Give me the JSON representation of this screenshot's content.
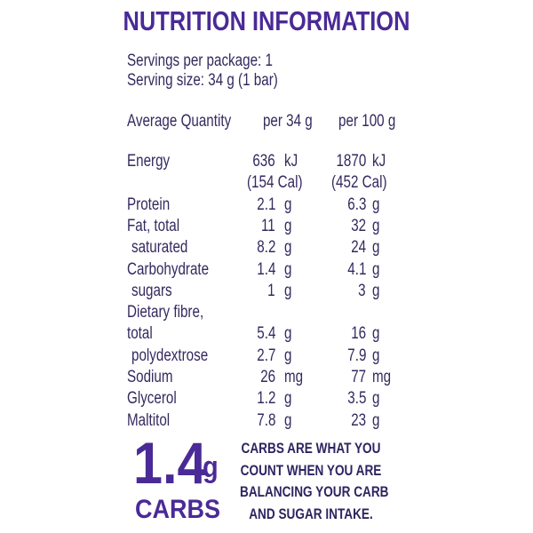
{
  "title": "NUTRITION INFORMATION",
  "servings": [
    "Servings per package: 1",
    "Serving size: 34 g (1 bar)"
  ],
  "table": {
    "header": [
      "Average Quantity",
      "per 34 g",
      "per 100 g"
    ],
    "rows": [
      {
        "name": "Energy",
        "serving": "636",
        "serving_unit": "kJ",
        "per100": "1870",
        "per100_unit": "kJ",
        "serving_extra": "(154 Cal)",
        "per100_extra": "(452 Cal)"
      },
      {
        "name": "Protein",
        "serving": "2.1",
        "serving_unit": "g",
        "per100": "6.3",
        "per100_unit": "g"
      },
      {
        "name": "Fat, total",
        "serving": "11",
        "serving_unit": "g",
        "per100": "32",
        "per100_unit": "g"
      },
      {
        "name": "saturated",
        "serving": "8.2",
        "serving_unit": "g",
        "per100": "24",
        "per100_unit": "g"
      },
      {
        "name": "Carbohydrate",
        "serving": "1.4",
        "serving_unit": "g",
        "per100": "4.1",
        "per100_unit": "g"
      },
      {
        "name": "sugars",
        "serving": "1",
        "serving_unit": "g",
        "per100": "3",
        "per100_unit": "g"
      },
      {
        "name": "Dietary fibre,",
        "name_line2": "total",
        "serving": "5.4",
        "serving_unit": "g",
        "per100": "16",
        "per100_unit": "g"
      },
      {
        "name": "polydextrose",
        "serving": "2.7",
        "serving_unit": "g",
        "per100": "7.9",
        "per100_unit": "g"
      },
      {
        "name": "Sodium",
        "serving": "26",
        "serving_unit": "mg",
        "per100": "77",
        "per100_unit": "mg"
      },
      {
        "name": "Glycerol",
        "serving": "1.2",
        "serving_unit": "g",
        "per100": "3.5",
        "per100_unit": "g"
      },
      {
        "name": "Maltitol",
        "serving": "7.8",
        "serving_unit": "g",
        "per100": "23",
        "per100_unit": "g"
      }
    ]
  },
  "highlight": {
    "value": "1.4",
    "unit": "g",
    "label": "CARBS"
  },
  "note": [
    "CARBS ARE WHAT YOU",
    "COUNT WHEN YOU ARE",
    "BALANCING YOUR CARB",
    "AND SUGAR INTAKE."
  ]
}
